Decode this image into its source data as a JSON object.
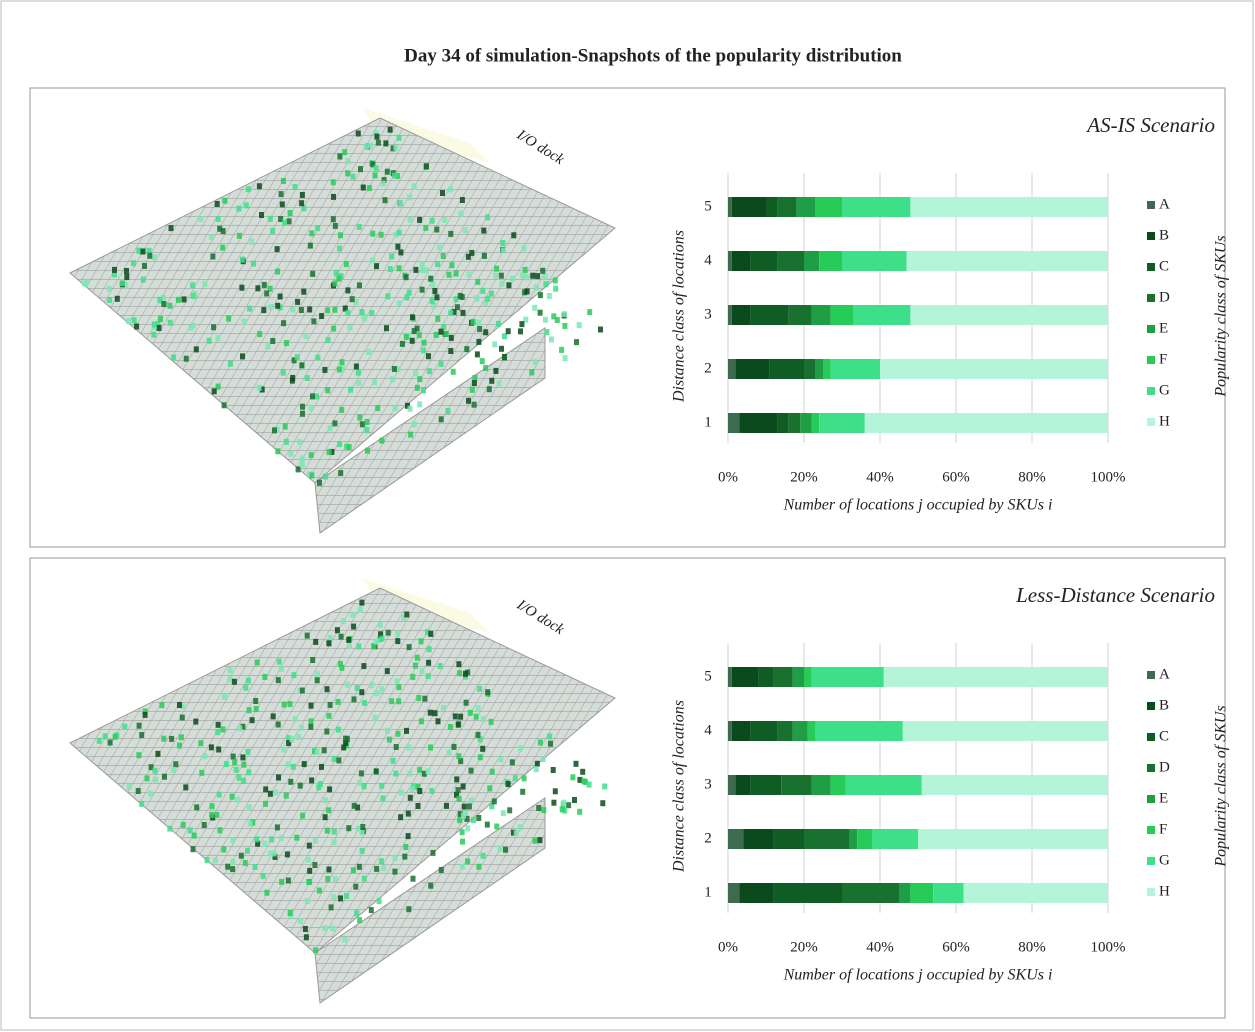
{
  "title": "Day 34 of simulation-Snapshots of the popularity distribution",
  "chart_data": [
    {
      "type": "stacked-bar",
      "orientation": "horizontal",
      "title": "AS-IS Scenario",
      "annotation": "I/O dock",
      "x_label": "Number of locations j occupied by SKUs i",
      "y_label": "Distance class of locations",
      "legend_title": "Popularity class of SKUs",
      "categories": [
        "1",
        "2",
        "3",
        "4",
        "5"
      ],
      "xlim": [
        0,
        100
      ],
      "xticks": [
        {
          "value": 0,
          "label": "0%"
        },
        {
          "value": 20,
          "label": "20%"
        },
        {
          "value": 40,
          "label": "40%"
        },
        {
          "value": 60,
          "label": "60%"
        },
        {
          "value": 80,
          "label": "80%"
        },
        {
          "value": 100,
          "label": "100%"
        }
      ],
      "grid": true,
      "legend": "right",
      "series": [
        {
          "name": "A",
          "color": "#3e6a50",
          "values": [
            3,
            2,
            1,
            1,
            1
          ]
        },
        {
          "name": "B",
          "color": "#0b4a1c",
          "values": [
            10,
            9,
            5,
            5,
            9
          ]
        },
        {
          "name": "C",
          "color": "#105c25",
          "values": [
            3,
            9,
            10,
            7,
            3
          ]
        },
        {
          "name": "D",
          "color": "#18712f",
          "values": [
            3,
            3,
            6,
            7,
            5
          ]
        },
        {
          "name": "E",
          "color": "#1f9e45",
          "values": [
            3,
            2,
            5,
            4,
            5
          ]
        },
        {
          "name": "F",
          "color": "#27cc58",
          "values": [
            2,
            2,
            6,
            6,
            7
          ]
        },
        {
          "name": "G",
          "color": "#3ddf88",
          "values": [
            12,
            13,
            15,
            17,
            18
          ]
        },
        {
          "name": "H",
          "color": "#b4f4d8",
          "values": [
            64,
            60,
            52,
            53,
            52
          ]
        }
      ]
    },
    {
      "type": "stacked-bar",
      "orientation": "horizontal",
      "title": "Less-Distance Scenario",
      "annotation": "I/O dock",
      "x_label": "Number of locations j occupied by SKUs i",
      "y_label": "Distance class of locations",
      "legend_title": "Popularity class of SKUs",
      "categories": [
        "1",
        "2",
        "3",
        "4",
        "5"
      ],
      "xlim": [
        0,
        100
      ],
      "xticks": [
        {
          "value": 0,
          "label": "0%"
        },
        {
          "value": 20,
          "label": "20%"
        },
        {
          "value": 40,
          "label": "40%"
        },
        {
          "value": 60,
          "label": "60%"
        },
        {
          "value": 80,
          "label": "80%"
        },
        {
          "value": 100,
          "label": "100%"
        }
      ],
      "grid": true,
      "legend": "right",
      "series": [
        {
          "name": "A",
          "color": "#3e6a50",
          "values": [
            3,
            4,
            2,
            1,
            1
          ]
        },
        {
          "name": "B",
          "color": "#0b4a1c",
          "values": [
            9,
            8,
            4,
            5,
            7
          ]
        },
        {
          "name": "C",
          "color": "#105c25",
          "values": [
            18,
            8,
            8,
            7,
            4
          ]
        },
        {
          "name": "D",
          "color": "#18712f",
          "values": [
            15,
            12,
            8,
            4,
            5
          ]
        },
        {
          "name": "E",
          "color": "#1f9e45",
          "values": [
            3,
            2,
            5,
            4,
            3
          ]
        },
        {
          "name": "F",
          "color": "#27cc58",
          "values": [
            6,
            4,
            4,
            2,
            2
          ]
        },
        {
          "name": "G",
          "color": "#3ddf88",
          "values": [
            8,
            12,
            20,
            23,
            19
          ]
        },
        {
          "name": "H",
          "color": "#b4f4d8",
          "values": [
            38,
            50,
            49,
            54,
            59
          ]
        }
      ]
    }
  ]
}
